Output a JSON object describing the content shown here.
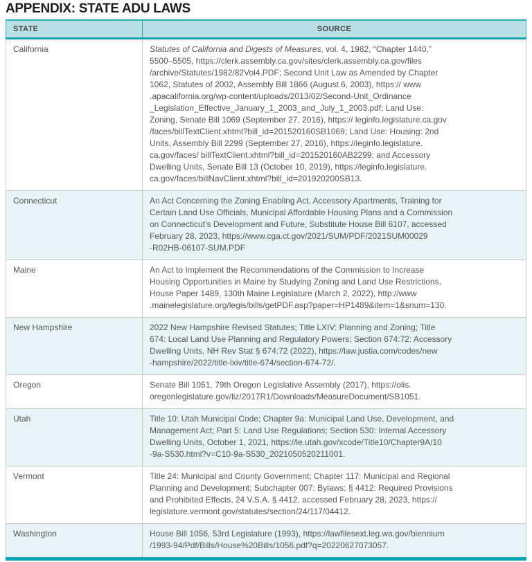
{
  "page": {
    "title": "APPENDIX: STATE ADU LAWS"
  },
  "colors": {
    "accent_teal": "#17a1b0",
    "header_bg": "#b9dee4",
    "alt_row_bg": "#e8f3f5",
    "body_text": "#56575b",
    "bottom_bar": "#0ea6b4"
  },
  "table": {
    "columns": [
      "STATE",
      "SOURCE"
    ],
    "rows": [
      {
        "state": "California",
        "italic_prefix": "Statutes of California and Digests of Measures",
        "source": "Statutes of California and Digests of Measures, vol. 4, 1982, “Chapter 1440,”\n5500–5505, https://clerk.assembly.ca.gov/sites/clerk.assembly.ca.gov/files\n/archive/Statutes/1982/82Vol4.PDF; Second Unit Law as Amended by Chapter\n1062, Statutes of 2002, Assembly Bill 1866 (August 6, 2003), https:// www\n.apacalifornia.org/wp-content/uploads/2013/02/Second-Unit_Ordinance\n_Legislation_Effective_January_1_2003_and_July_1_2003.pdf; Land Use:\nZoning, Senate Bill 1069 (September 27, 2016), https:// leginfo.legislature.ca.gov\n/faces/billTextClient.xhtml?bill_id=201520160SB1069; Land Use: Housing: 2nd\nUnits, Assembly Bill 2299 (September 27, 2016), https://leginfo.legislature.\nca.gov/faces/ billTextClient.xhtml?bill_id=201520160AB2299; and Accessory\nDwelling Units, Senate Bill 13 (October 10, 2019), https://leginfo.legislature.\nca.gov/faces/billNavClient.xhtml?bill_id=201920200SB13."
      },
      {
        "state": "Connecticut",
        "source": "An Act Concerning the Zoning Enabling Act, Accessory Apartments, Training for\nCertain Land Use Officials, Municipal Affordable Housing Plans and a Commission\non Connecticut’s Development and Future, Substitute House Bill 6107, accessed\nFebruary 28, 2023, https://www.cga.ct.gov/2021/SUM/PDF/2021SUM00029\n-R02HB-06107-SUM.PDF"
      },
      {
        "state": "Maine",
        "source": "An Act to Implement the Recommendations of the Commission to Increase\nHousing Opportunities in Maine by Studying Zoning and Land Use Restrictions,\nHouse Paper 1489, 130th Maine Legislature (March 2, 2022), http://www\n.mainelegislature.org/legis/bills/getPDF.asp?paper=HP1489&item=1&snum=130."
      },
      {
        "state": "New Hampshire",
        "source": "2022 New Hampshire Revised Statutes; Title LXIV: Planning and Zoning; Title\n674: Local Land Use Planning and Regulatory Powers; Section 674:72: Accessory\nDwelling Units, NH Rev Stat § 674:72 (2022), https://law.justia.com/codes/new\n-hampshire/2022/title-lxiv/title-674/section-674-72/."
      },
      {
        "state": "Oregon",
        "source": "Senate Bill 1051, 79th Oregon Legislative Assembly (2017), https://olis.\noregonlegislature.gov/liz/2017R1/Downloads/MeasureDocument/SB1051."
      },
      {
        "state": "Utah",
        "source": "Title 10: Utah Municipal Code; Chapter 9a: Municipal Land Use, Development, and\nManagement Act; Part 5: Land Use Regulations; Section 530: Internal Accessory\nDwelling Units, October 1, 2021, https://le.utah.gov/xcode/Title10/Chapter9A/10\n-9a-S530.html?v=C10-9a-S530_2021050520211001."
      },
      {
        "state": "Vermont",
        "source": "Title 24: Municipal and County Government; Chapter 117: Municipal and Regional\nPlanning and Development; Subchapter 007: Bylaws; § 4412: Required Provisions\nand Prohibited Effects, 24 V.S.A. § 4412, accessed February 28, 2023, https://\nlegislature.vermont.gov/statutes/section/24/117/04412."
      },
      {
        "state": "Washington",
        "source": "House Bill 1056, 53rd Legislature (1993), https://lawfilesext.leg.wa.gov/biennium\n/1993-94/Pdf/Bills/House%20Bills/1056.pdf?q=20220627073057."
      }
    ]
  }
}
